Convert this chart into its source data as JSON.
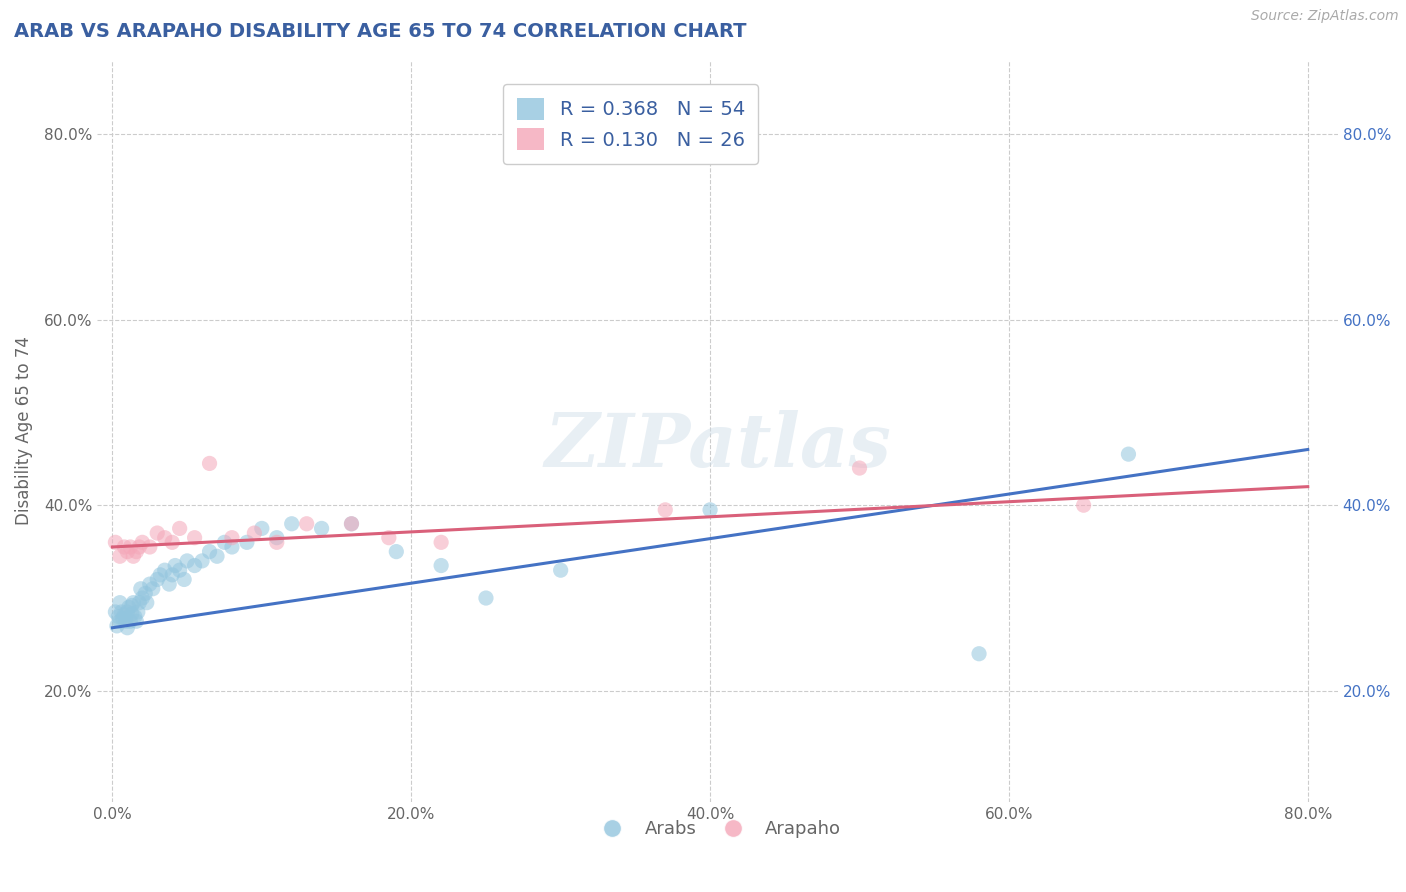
{
  "title": "ARAB VS ARAPAHO DISABILITY AGE 65 TO 74 CORRELATION CHART",
  "source": "Source: ZipAtlas.com",
  "ylabel": "Disability Age 65 to 74",
  "xlabel": "",
  "xlim": [
    -0.01,
    0.82
  ],
  "ylim": [
    0.08,
    0.88
  ],
  "ytick_labels": [
    "20.0%",
    "40.0%",
    "60.0%",
    "80.0%"
  ],
  "ytick_values": [
    0.2,
    0.4,
    0.6,
    0.8
  ],
  "xtick_labels": [
    "0.0%",
    "20.0%",
    "40.0%",
    "60.0%",
    "80.0%"
  ],
  "xtick_values": [
    0.0,
    0.2,
    0.4,
    0.6,
    0.8
  ],
  "arab_color": "#92c5de",
  "arapaho_color": "#f4a6b8",
  "arab_line_color": "#4472c4",
  "arapaho_line_color": "#d9607a",
  "arab_R": 0.368,
  "arab_N": 54,
  "arapaho_R": 0.13,
  "arapaho_N": 26,
  "legend_R_color": "#3a5fa0",
  "watermark": "ZIPatlas",
  "arab_x": [
    0.002,
    0.003,
    0.004,
    0.005,
    0.005,
    0.006,
    0.007,
    0.008,
    0.009,
    0.01,
    0.01,
    0.011,
    0.012,
    0.013,
    0.013,
    0.014,
    0.015,
    0.016,
    0.017,
    0.018,
    0.019,
    0.02,
    0.022,
    0.023,
    0.025,
    0.027,
    0.03,
    0.032,
    0.035,
    0.038,
    0.04,
    0.042,
    0.045,
    0.048,
    0.05,
    0.055,
    0.06,
    0.065,
    0.07,
    0.075,
    0.08,
    0.09,
    0.1,
    0.11,
    0.12,
    0.14,
    0.16,
    0.19,
    0.22,
    0.25,
    0.3,
    0.4,
    0.58,
    0.68
  ],
  "arab_y": [
    0.285,
    0.27,
    0.28,
    0.295,
    0.275,
    0.285,
    0.278,
    0.282,
    0.275,
    0.268,
    0.285,
    0.29,
    0.275,
    0.283,
    0.292,
    0.295,
    0.28,
    0.275,
    0.285,
    0.295,
    0.31,
    0.3,
    0.305,
    0.295,
    0.315,
    0.31,
    0.32,
    0.325,
    0.33,
    0.315,
    0.325,
    0.335,
    0.33,
    0.32,
    0.34,
    0.335,
    0.34,
    0.35,
    0.345,
    0.36,
    0.355,
    0.36,
    0.375,
    0.365,
    0.38,
    0.375,
    0.38,
    0.35,
    0.335,
    0.3,
    0.33,
    0.395,
    0.24,
    0.455
  ],
  "arapaho_x": [
    0.002,
    0.005,
    0.008,
    0.01,
    0.012,
    0.014,
    0.016,
    0.018,
    0.02,
    0.025,
    0.03,
    0.035,
    0.04,
    0.045,
    0.055,
    0.065,
    0.08,
    0.095,
    0.11,
    0.13,
    0.16,
    0.185,
    0.22,
    0.37,
    0.5,
    0.65
  ],
  "arapaho_y": [
    0.36,
    0.345,
    0.355,
    0.35,
    0.355,
    0.345,
    0.35,
    0.355,
    0.36,
    0.355,
    0.37,
    0.365,
    0.36,
    0.375,
    0.365,
    0.445,
    0.365,
    0.37,
    0.36,
    0.38,
    0.38,
    0.365,
    0.36,
    0.395,
    0.44,
    0.4
  ],
  "background_color": "#ffffff",
  "grid_color": "#cccccc",
  "title_color": "#3a5fa0",
  "axis_label_color": "#666666"
}
